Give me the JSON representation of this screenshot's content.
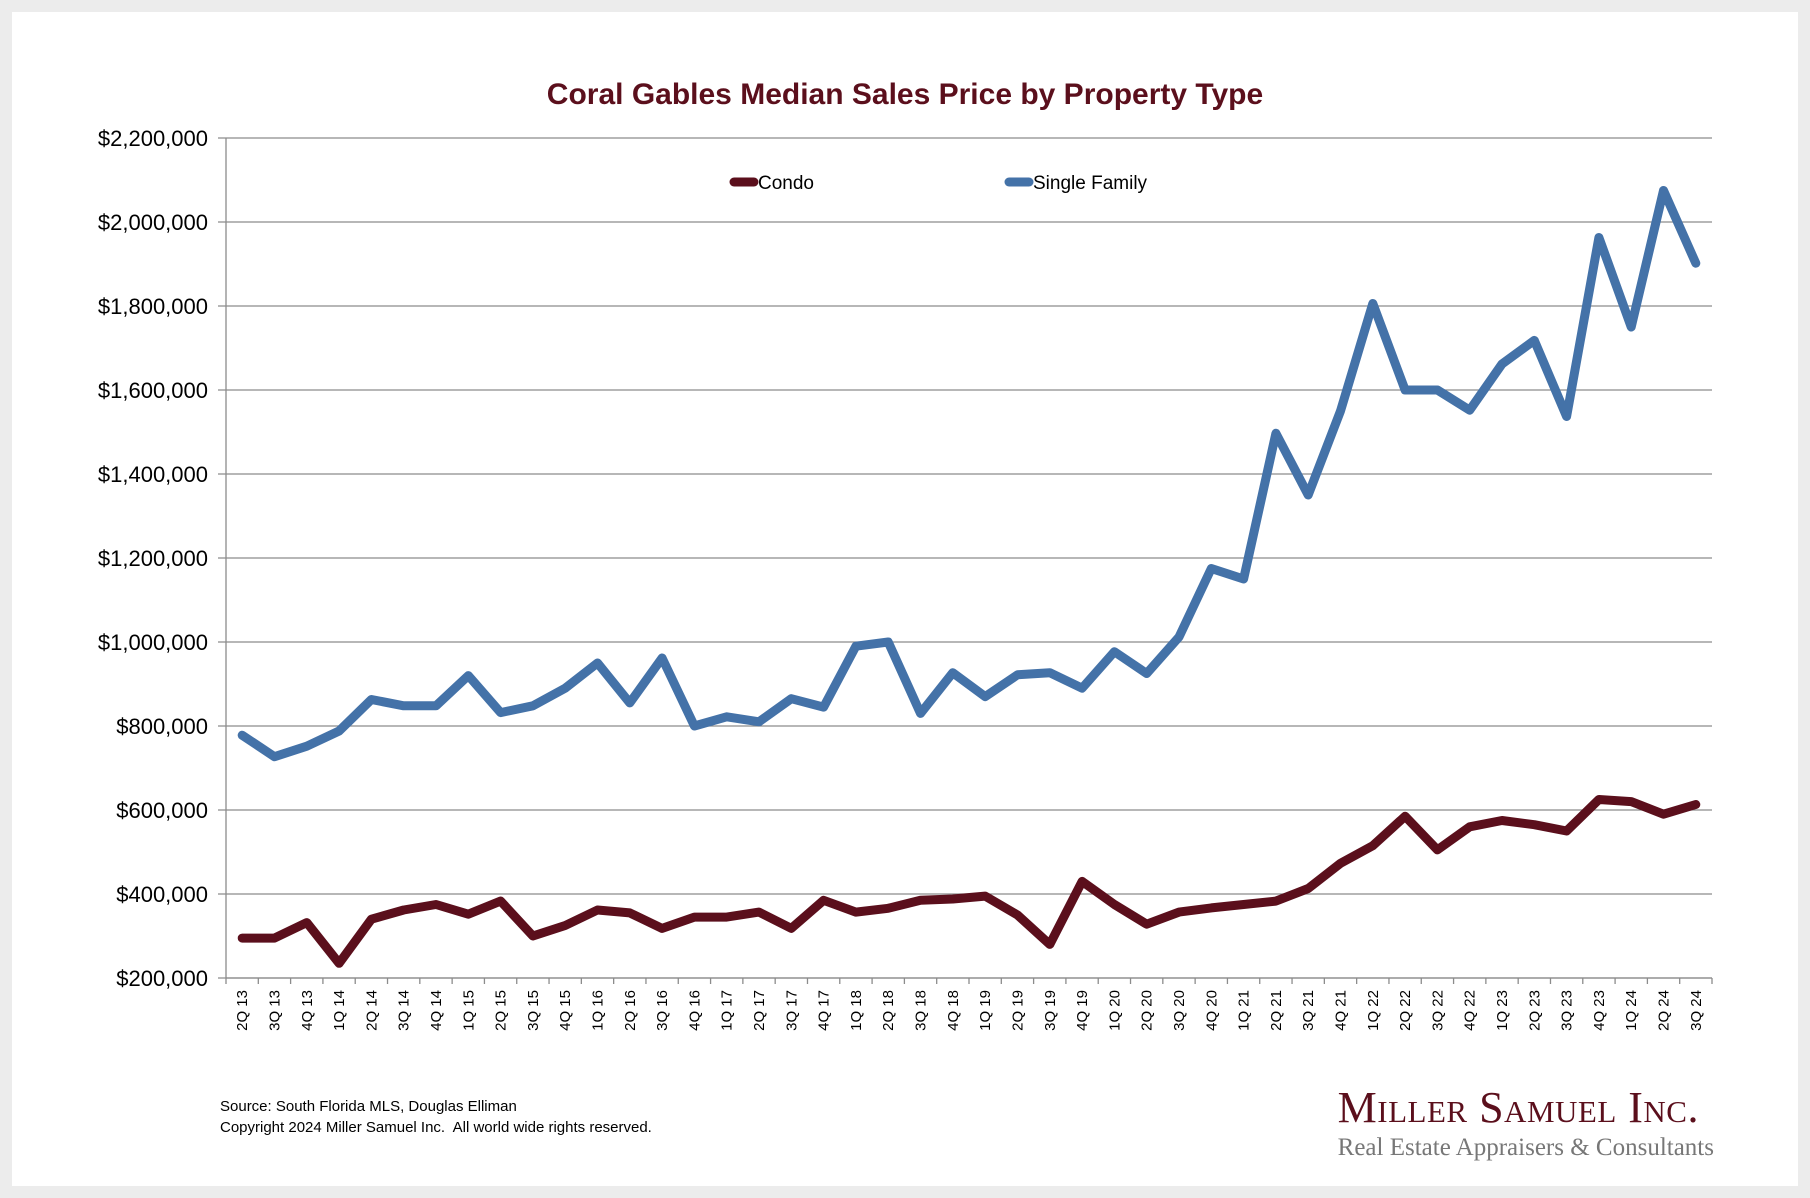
{
  "chart_data": {
    "type": "line",
    "title": "Coral Gables Median Sales Price by Property Type",
    "xlabel": "",
    "ylabel": "",
    "ylim": [
      200000,
      2200000
    ],
    "y_ticks": [
      200000,
      400000,
      600000,
      800000,
      1000000,
      1200000,
      1400000,
      1600000,
      1800000,
      2000000,
      2200000
    ],
    "y_tick_labels": [
      "$200,000",
      "$400,000",
      "$600,000",
      "$800,000",
      "$1,000,000",
      "$1,200,000",
      "$1,400,000",
      "$1,600,000",
      "$1,800,000",
      "$2,000,000",
      "$2,200,000"
    ],
    "grid": true,
    "legend_position": "top-center",
    "categories": [
      "2Q 13",
      "3Q 13",
      "4Q 13",
      "1Q 14",
      "2Q 14",
      "3Q 14",
      "4Q 14",
      "1Q 15",
      "2Q 15",
      "3Q 15",
      "4Q 15",
      "1Q 16",
      "2Q 16",
      "3Q 16",
      "4Q 16",
      "1Q 17",
      "2Q 17",
      "3Q 17",
      "4Q 17",
      "1Q 18",
      "2Q 18",
      "3Q 18",
      "4Q 18",
      "1Q 19",
      "2Q 19",
      "3Q 19",
      "4Q 19",
      "1Q 20",
      "2Q 20",
      "3Q 20",
      "4Q 20",
      "1Q 21",
      "2Q 21",
      "3Q 21",
      "4Q 21",
      "1Q 22",
      "2Q 22",
      "3Q 22",
      "4Q 22",
      "1Q 23",
      "2Q 23",
      "3Q 23",
      "4Q 23",
      "1Q 24",
      "2Q 24",
      "3Q 24"
    ],
    "series": [
      {
        "name": "Condo",
        "color": "#5b0f1c",
        "values": [
          295000,
          295000,
          332000,
          235000,
          340000,
          362000,
          375000,
          352000,
          383000,
          300000,
          325000,
          362000,
          355000,
          318000,
          345000,
          345000,
          357000,
          318000,
          385000,
          357000,
          366000,
          385000,
          388000,
          395000,
          350000,
          280000,
          430000,
          375000,
          328000,
          357000,
          367000,
          375000,
          383000,
          413000,
          473000,
          515000,
          585000,
          505000,
          560000,
          575000,
          565000,
          550000,
          625000,
          620000,
          590000,
          613000
        ]
      },
      {
        "name": "Single Family",
        "color": "#4472a8",
        "values": [
          778000,
          727000,
          752000,
          788000,
          863000,
          848000,
          848000,
          920000,
          832000,
          848000,
          890000,
          950000,
          855000,
          962000,
          800000,
          822000,
          810000,
          865000,
          845000,
          990000,
          1000000,
          830000,
          927000,
          870000,
          922000,
          927000,
          890000,
          977000,
          925000,
          1012000,
          1175000,
          1150000,
          1497000,
          1350000,
          1550000,
          1806000,
          1600000,
          1600000,
          1552000,
          1662000,
          1718000,
          1537000,
          1963000,
          1750000,
          2075000,
          1902000
        ]
      }
    ]
  },
  "footer": {
    "source": "Source: South Florida MLS, Douglas Elliman",
    "copyright": "Copyright 2024 Miller Samuel Inc.  All world wide rights reserved."
  },
  "logo": {
    "name": "Miller Samuel Inc.",
    "tagline": "Real Estate Appraisers & Consultants"
  }
}
